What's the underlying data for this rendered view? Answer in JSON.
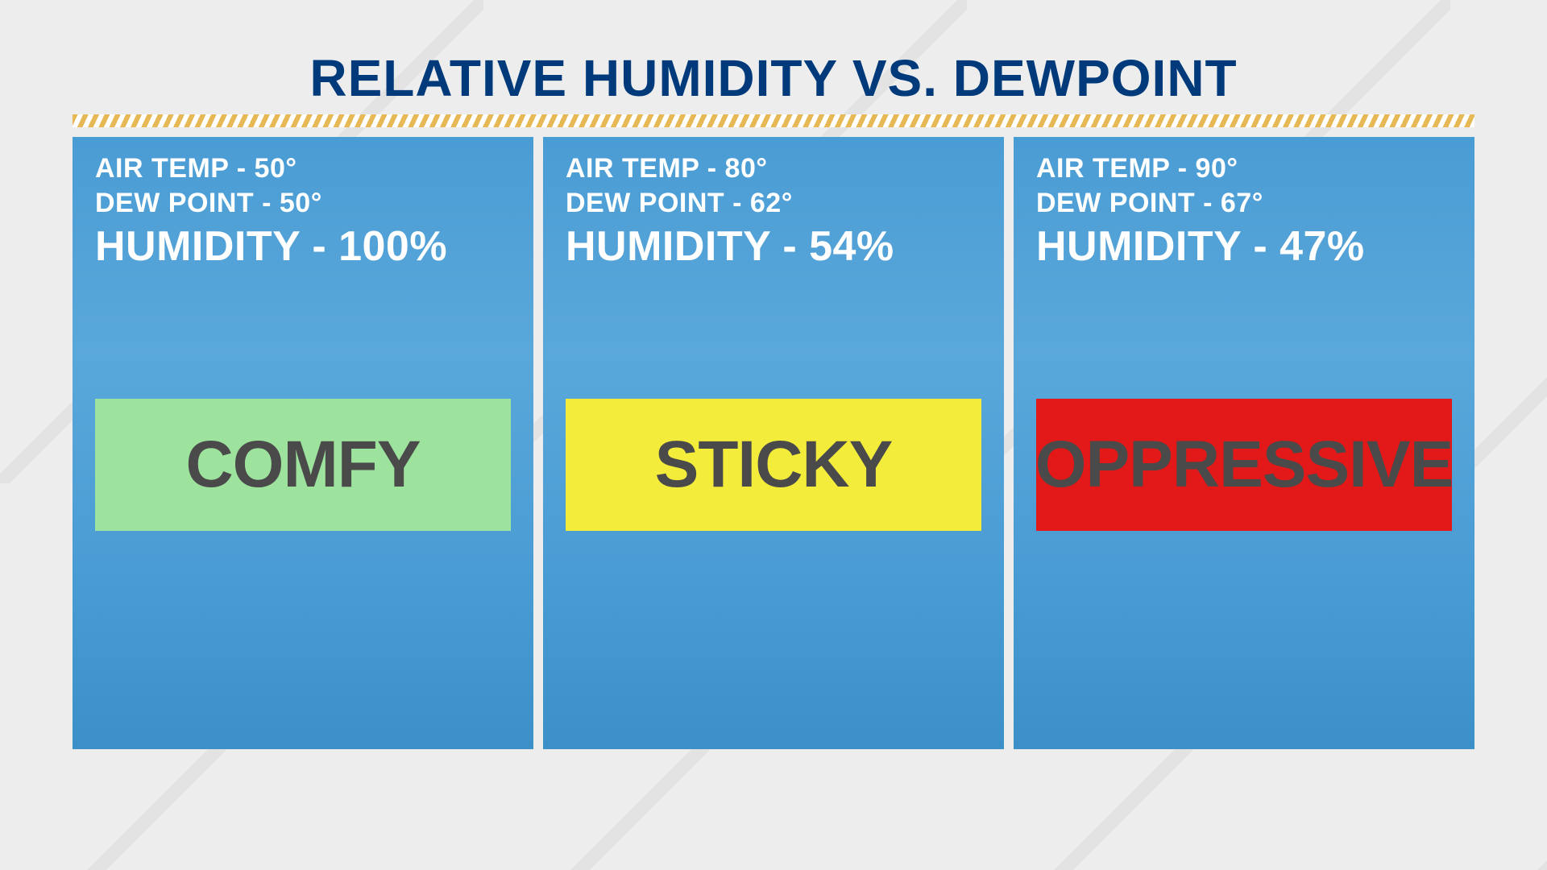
{
  "type": "infographic",
  "title": "RELATIVE HUMIDITY VS. DEWPOINT",
  "title_color": "#003a7a",
  "title_fontsize": 64,
  "background_color": "#e8e8e8",
  "divider_color_a": "#e6b956",
  "divider_color_b": "#ffffff",
  "panel_background": "#4a9cd4",
  "panel_text_color": "#ffffff",
  "badge_text_color": "#4a4a4a",
  "panels": [
    {
      "air_temp_label": "AIR TEMP - 50°",
      "dewpoint_label": "DEW POINT - 50°",
      "humidity_label": "HUMIDITY - 100%",
      "badge_text": "COMFY",
      "badge_color": "#9de29d",
      "air_temp": 50,
      "dew_point": 50,
      "humidity_pct": 100
    },
    {
      "air_temp_label": "AIR TEMP - 80°",
      "dewpoint_label": "DEW POINT - 62°",
      "humidity_label": "HUMIDITY - 54%",
      "badge_text": "STICKY",
      "badge_color": "#f3ec3b",
      "air_temp": 80,
      "dew_point": 62,
      "humidity_pct": 54
    },
    {
      "air_temp_label": "AIR TEMP - 90°",
      "dewpoint_label": "DEW POINT - 67°",
      "humidity_label": "HUMIDITY - 47%",
      "badge_text": "OPPRESSIVE",
      "badge_color": "#e31818",
      "air_temp": 90,
      "dew_point": 67,
      "humidity_pct": 47
    }
  ],
  "stat_small_fontsize": 34,
  "stat_large_fontsize": 52,
  "badge_fontsize": 82,
  "panel_gap": 12
}
